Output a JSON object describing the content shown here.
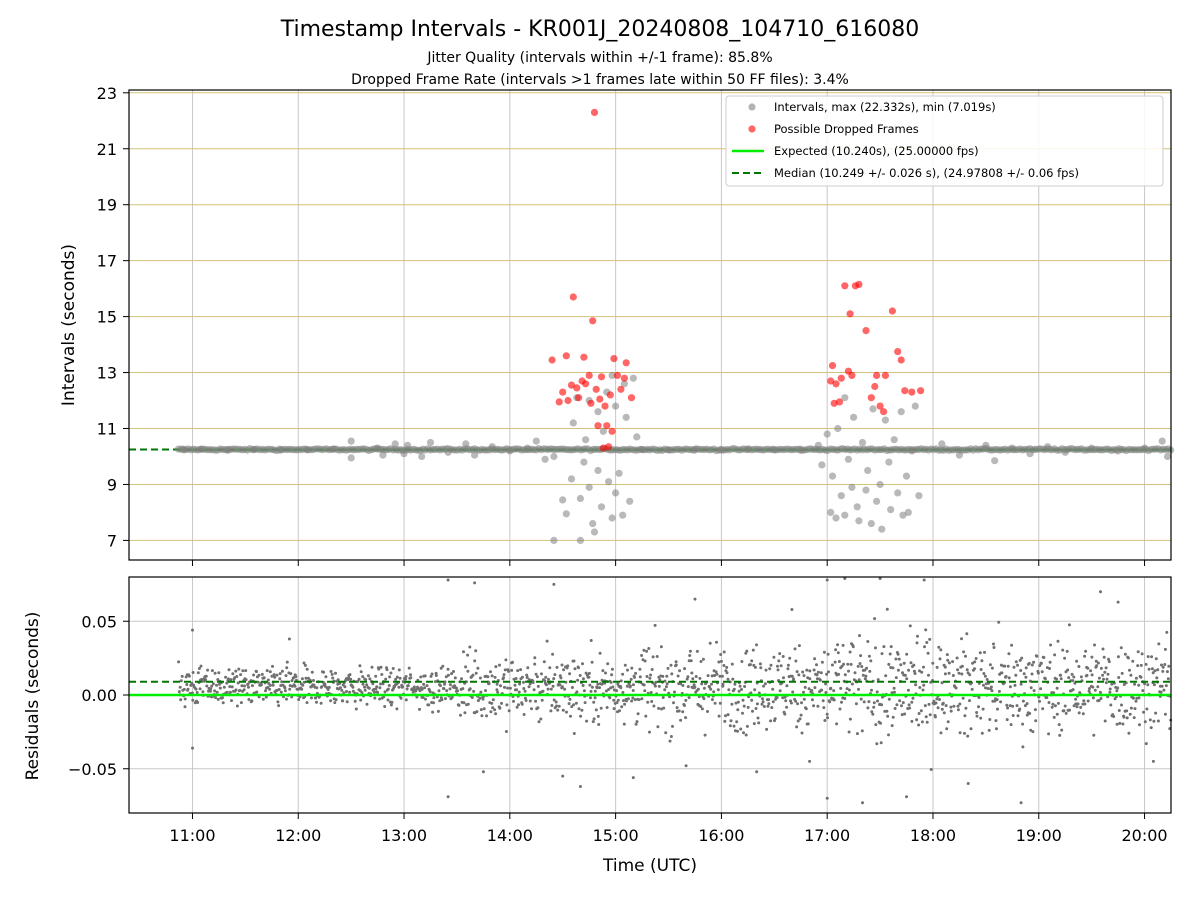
{
  "chart_data": [
    {
      "type": "scatter",
      "title": "Timestamp Intervals - KR001J_20240808_104710_616080",
      "subtitle_lines": [
        "Jitter Quality (intervals within +/-1 frame): 85.8%",
        "Dropped Frame Rate (intervals >1 frames late within 50 FF files): 3.4%"
      ],
      "xlabel": "",
      "ylabel": "Intervals (seconds)",
      "xlim": [
        "10:24",
        "20:15"
      ],
      "ylim": [
        6.3,
        23.1
      ],
      "yticks": [
        7,
        9,
        11,
        13,
        15,
        17,
        19,
        21,
        23
      ],
      "grid": true,
      "legend_position": "top-right",
      "legend": [
        "Intervals, max (22.332s), min (7.019s)",
        "Possible Dropped Frames",
        "Expected (10.240s), (25.00000 fps)",
        "Median (10.249 +/- 0.026 s), (24.97808 +/- 0.06 fps)"
      ],
      "expected_interval": 10.24,
      "median_interval": 10.249,
      "series": [
        {
          "name": "Intervals, max (22.332s), min (7.019s)",
          "color": "#808080",
          "points": [
            [
              "10:55",
              10.24
            ],
            [
              "11:05",
              10.26
            ],
            [
              "11:20",
              10.22
            ],
            [
              "11:35",
              10.25
            ],
            [
              "11:50",
              10.23
            ],
            [
              "12:05",
              10.24
            ],
            [
              "12:20",
              10.26
            ],
            [
              "12:30",
              10.55
            ],
            [
              "12:30",
              9.95
            ],
            [
              "12:45",
              10.3
            ],
            [
              "12:48",
              10.05
            ],
            [
              "12:55",
              10.45
            ],
            [
              "13:00",
              10.1
            ],
            [
              "13:02",
              10.4
            ],
            [
              "13:10",
              10.0
            ],
            [
              "13:15",
              10.5
            ],
            [
              "13:25",
              10.15
            ],
            [
              "13:35",
              10.45
            ],
            [
              "13:40",
              10.05
            ],
            [
              "13:50",
              10.35
            ],
            [
              "14:00",
              10.2
            ],
            [
              "14:10",
              10.3
            ],
            [
              "14:15",
              10.55
            ],
            [
              "14:20",
              9.9
            ],
            [
              "14:25",
              10.0
            ],
            [
              "14:25",
              7.0
            ],
            [
              "14:30",
              8.45
            ],
            [
              "14:32",
              7.95
            ],
            [
              "14:35",
              9.2
            ],
            [
              "14:36",
              11.2
            ],
            [
              "14:38",
              12.1
            ],
            [
              "14:40",
              8.5
            ],
            [
              "14:40",
              7.0
            ],
            [
              "14:42",
              9.8
            ],
            [
              "14:43",
              10.6
            ],
            [
              "14:45",
              8.9
            ],
            [
              "14:45",
              12.0
            ],
            [
              "14:47",
              7.6
            ],
            [
              "14:48",
              7.3
            ],
            [
              "14:50",
              9.5
            ],
            [
              "14:50",
              11.6
            ],
            [
              "14:52",
              8.2
            ],
            [
              "14:53",
              10.9
            ],
            [
              "14:55",
              12.3
            ],
            [
              "14:56",
              9.1
            ],
            [
              "14:58",
              7.8
            ],
            [
              "14:58",
              12.9
            ],
            [
              "15:00",
              8.7
            ],
            [
              "15:00",
              11.8
            ],
            [
              "15:02",
              9.4
            ],
            [
              "15:04",
              7.9
            ],
            [
              "15:05",
              12.6
            ],
            [
              "15:06",
              11.4
            ],
            [
              "15:08",
              8.4
            ],
            [
              "15:10",
              12.8
            ],
            [
              "15:12",
              10.7
            ],
            [
              "15:15",
              10.25
            ],
            [
              "15:30",
              10.24
            ],
            [
              "15:45",
              10.26
            ],
            [
              "16:00",
              10.23
            ],
            [
              "16:15",
              10.25
            ],
            [
              "16:30",
              10.24
            ],
            [
              "16:45",
              10.22
            ],
            [
              "16:55",
              10.4
            ],
            [
              "16:57",
              9.7
            ],
            [
              "17:00",
              10.8
            ],
            [
              "17:02",
              8.0
            ],
            [
              "17:03",
              9.3
            ],
            [
              "17:05",
              7.8
            ],
            [
              "17:06",
              11.0
            ],
            [
              "17:08",
              8.6
            ],
            [
              "17:10",
              12.1
            ],
            [
              "17:10",
              7.9
            ],
            [
              "17:12",
              9.9
            ],
            [
              "17:14",
              8.9
            ],
            [
              "17:15",
              11.4
            ],
            [
              "17:17",
              8.2
            ],
            [
              "17:18",
              7.7
            ],
            [
              "17:20",
              10.5
            ],
            [
              "17:22",
              8.8
            ],
            [
              "17:23",
              9.5
            ],
            [
              "17:25",
              7.6
            ],
            [
              "17:26",
              11.7
            ],
            [
              "17:28",
              8.4
            ],
            [
              "17:30",
              9.0
            ],
            [
              "17:31",
              7.4
            ],
            [
              "17:33",
              11.3
            ],
            [
              "17:35",
              9.8
            ],
            [
              "17:36",
              8.1
            ],
            [
              "17:38",
              10.6
            ],
            [
              "17:40",
              8.7
            ],
            [
              "17:42",
              11.6
            ],
            [
              "17:43",
              7.9
            ],
            [
              "17:45",
              9.3
            ],
            [
              "17:46",
              8.0
            ],
            [
              "17:48",
              10.2
            ],
            [
              "17:50",
              11.8
            ],
            [
              "17:52",
              8.6
            ],
            [
              "18:05",
              10.45
            ],
            [
              "18:15",
              10.05
            ],
            [
              "18:30",
              10.4
            ],
            [
              "18:35",
              9.85
            ],
            [
              "18:45",
              10.3
            ],
            [
              "18:55",
              10.1
            ],
            [
              "19:05",
              10.35
            ],
            [
              "19:15",
              10.15
            ],
            [
              "19:30",
              10.3
            ],
            [
              "19:45",
              10.2
            ],
            [
              "20:00",
              10.3
            ],
            [
              "20:10",
              10.55
            ],
            [
              "20:13",
              10.0
            ]
          ]
        },
        {
          "name": "Possible Dropped Frames",
          "color": "#ff0000",
          "points": [
            [
              "14:24",
              13.45
            ],
            [
              "14:28",
              11.95
            ],
            [
              "14:30",
              12.3
            ],
            [
              "14:32",
              13.6
            ],
            [
              "14:33",
              12.0
            ],
            [
              "14:35",
              12.55
            ],
            [
              "14:36",
              15.7
            ],
            [
              "14:38",
              12.45
            ],
            [
              "14:39",
              12.1
            ],
            [
              "14:41",
              12.7
            ],
            [
              "14:42",
              13.55
            ],
            [
              "14:43",
              12.6
            ],
            [
              "14:45",
              12.9
            ],
            [
              "14:46",
              11.9
            ],
            [
              "14:47",
              14.85
            ],
            [
              "14:48",
              22.3
            ],
            [
              "14:49",
              12.4
            ],
            [
              "14:50",
              11.1
            ],
            [
              "14:51",
              12.05
            ],
            [
              "14:52",
              12.85
            ],
            [
              "14:53",
              10.3
            ],
            [
              "14:54",
              11.8
            ],
            [
              "14:55",
              11.1
            ],
            [
              "14:56",
              10.35
            ],
            [
              "14:57",
              12.2
            ],
            [
              "14:58",
              10.9
            ],
            [
              "14:59",
              13.5
            ],
            [
              "15:01",
              12.9
            ],
            [
              "15:03",
              12.4
            ],
            [
              "15:05",
              12.8
            ],
            [
              "15:06",
              13.35
            ],
            [
              "15:09",
              12.1
            ],
            [
              "17:02",
              12.7
            ],
            [
              "17:03",
              13.25
            ],
            [
              "17:04",
              11.9
            ],
            [
              "17:05",
              12.6
            ],
            [
              "17:07",
              11.95
            ],
            [
              "17:08",
              12.8
            ],
            [
              "17:10",
              16.1
            ],
            [
              "17:12",
              13.05
            ],
            [
              "17:13",
              15.1
            ],
            [
              "17:14",
              12.9
            ],
            [
              "17:16",
              16.1
            ],
            [
              "17:18",
              16.15
            ],
            [
              "17:22",
              14.5
            ],
            [
              "17:25",
              12.1
            ],
            [
              "17:27",
              12.5
            ],
            [
              "17:28",
              12.9
            ],
            [
              "17:30",
              11.8
            ],
            [
              "17:32",
              11.6
            ],
            [
              "17:33",
              12.9
            ],
            [
              "17:37",
              15.2
            ],
            [
              "17:40",
              13.75
            ],
            [
              "17:42",
              13.45
            ],
            [
              "17:44",
              12.35
            ],
            [
              "17:48",
              12.3
            ],
            [
              "17:53",
              12.35
            ]
          ]
        },
        {
          "name": "Expected (10.240s), (25.00000 fps)",
          "color": "#00ee00",
          "line_y": 10.24
        },
        {
          "name": "Median (10.249 +/- 0.026 s), (24.97808 +/- 0.06 fps)",
          "color": "#007700",
          "line_y": 10.249,
          "dashed": true
        }
      ]
    },
    {
      "type": "scatter",
      "title": "",
      "xlabel": "Time (UTC)",
      "ylabel": "Residuals (seconds)",
      "xlim": [
        "10:24",
        "20:15"
      ],
      "ylim": [
        -0.08,
        0.08
      ],
      "yticks": [
        0.05,
        0.0,
        -0.05
      ],
      "ytick_labels": [
        "0.05",
        "0.00",
        "−0.05"
      ],
      "xticks": [
        "11:00",
        "12:00",
        "13:00",
        "14:00",
        "15:00",
        "16:00",
        "17:00",
        "18:00",
        "19:00",
        "20:00"
      ],
      "grid": true,
      "expected_residual": 0.0,
      "median_residual": 0.009,
      "series": [
        {
          "name": "",
          "color": "#707070",
          "density_profile": [
            {
              "from": "10:52",
              "to": "13:30",
              "spread": 0.012
            },
            {
              "from": "13:30",
              "to": "15:10",
              "spread": 0.022
            },
            {
              "from": "15:10",
              "to": "17:00",
              "spread": 0.026
            },
            {
              "from": "17:00",
              "to": "18:00",
              "spread": 0.032
            },
            {
              "from": "18:00",
              "to": "20:15",
              "spread": 0.028
            }
          ],
          "outliers": [
            [
              "11:00",
              0.044
            ],
            [
              "11:00",
              -0.036
            ],
            [
              "11:55",
              0.038
            ],
            [
              "13:25",
              0.078
            ],
            [
              "13:25",
              -0.069
            ],
            [
              "13:40",
              0.076
            ],
            [
              "13:45",
              -0.052
            ],
            [
              "14:25",
              0.075
            ],
            [
              "14:30",
              -0.055
            ],
            [
              "14:40",
              -0.062
            ],
            [
              "15:10",
              -0.056
            ],
            [
              "15:40",
              -0.048
            ],
            [
              "15:45",
              0.065
            ],
            [
              "16:20",
              -0.052
            ],
            [
              "16:40",
              0.058
            ],
            [
              "16:50",
              -0.045
            ],
            [
              "17:00",
              0.078
            ],
            [
              "17:00",
              -0.07
            ],
            [
              "17:10",
              0.079
            ],
            [
              "17:20",
              -0.073
            ],
            [
              "17:30",
              0.079
            ],
            [
              "17:45",
              -0.069
            ],
            [
              "17:55",
              0.078
            ],
            [
              "18:20",
              -0.06
            ],
            [
              "18:50",
              -0.073
            ],
            [
              "19:35",
              0.07
            ],
            [
              "19:45",
              0.063
            ],
            [
              "20:05",
              -0.045
            ]
          ]
        }
      ]
    }
  ]
}
